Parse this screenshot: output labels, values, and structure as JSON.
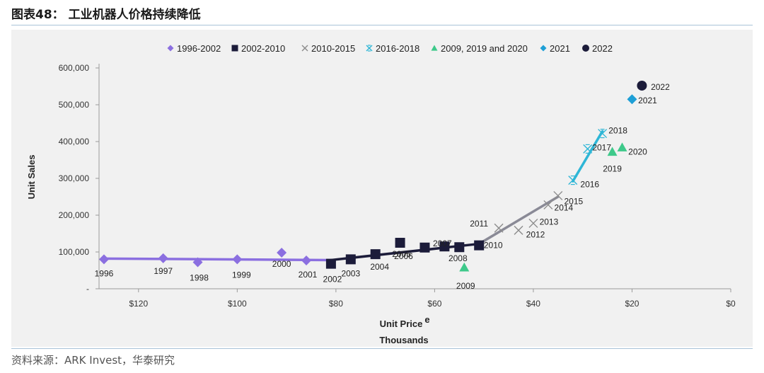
{
  "figure": {
    "title": "图表48： 工业机器人价格持续降低",
    "source": "资料来源：ARK Invest，华泰研究"
  },
  "chart_data": {
    "type": "scatter",
    "title": "",
    "xlabel": "Unit Price",
    "xlabel_sup": "e",
    "xlabel_sub": "Thousands",
    "ylabel": "Unit Sales",
    "xlim": [
      128,
      0
    ],
    "ylim": [
      0,
      600000
    ],
    "xticks": [
      120,
      100,
      80,
      60,
      40,
      20,
      0
    ],
    "xtick_labels": [
      "$120",
      "$100",
      "$80",
      "$60",
      "$40",
      "$20",
      "$0"
    ],
    "yticks": [
      0,
      100000,
      200000,
      300000,
      400000,
      500000,
      600000
    ],
    "ytick_labels": [
      "-",
      "100,000",
      "200,000",
      "300,000",
      "400,000",
      "500,000",
      "600,000"
    ],
    "legend_position": "top",
    "series": [
      {
        "name": "1996-2002",
        "marker": "diamond",
        "color": "#8b6fe0",
        "points": [
          {
            "x": 127,
            "y": 80000,
            "label": "1996"
          },
          {
            "x": 115,
            "y": 83000,
            "label": "1997"
          },
          {
            "x": 108,
            "y": 72000,
            "label": "1998"
          },
          {
            "x": 100,
            "y": 80000,
            "label": "1999"
          },
          {
            "x": 91,
            "y": 98000,
            "label": "2000"
          },
          {
            "x": 86,
            "y": 77000,
            "label": "2001"
          }
        ]
      },
      {
        "name": "2002-2010",
        "marker": "square",
        "color": "#1c1c3a",
        "points": [
          {
            "x": 81,
            "y": 68000,
            "label": "2002"
          },
          {
            "x": 77,
            "y": 80000,
            "label": "2003"
          },
          {
            "x": 72,
            "y": 94000,
            "label": "2004"
          },
          {
            "x": 67,
            "y": 125000,
            "label": "2005"
          },
          {
            "x": 62,
            "y": 112000,
            "label": "2006"
          },
          {
            "x": 58,
            "y": 115000,
            "label": "2007"
          },
          {
            "x": 55,
            "y": 113000,
            "label": "2008"
          },
          {
            "x": 51,
            "y": 118000,
            "label": "2010"
          }
        ]
      },
      {
        "name": "2010-2015",
        "marker": "x",
        "color": "#8c8c8c",
        "points": [
          {
            "x": 47,
            "y": 165000,
            "label": "2011"
          },
          {
            "x": 43,
            "y": 159000,
            "label": "2012"
          },
          {
            "x": 40,
            "y": 178000,
            "label": "2013"
          },
          {
            "x": 37,
            "y": 228000,
            "label": "2014"
          },
          {
            "x": 35,
            "y": 253000,
            "label": "2015"
          }
        ]
      },
      {
        "name": "2016-2018",
        "marker": "star-x",
        "color": "#2eb6d6",
        "points": [
          {
            "x": 32,
            "y": 295000,
            "label": "2016"
          },
          {
            "x": 29,
            "y": 380000,
            "label": "2017"
          },
          {
            "x": 26,
            "y": 422000,
            "label": "2018"
          }
        ]
      },
      {
        "name": "2009, 2019 and 2020",
        "marker": "triangle",
        "color": "#3ec98a",
        "points": [
          {
            "x": 54,
            "y": 58000,
            "label": "2009"
          },
          {
            "x": 24,
            "y": 372000,
            "label": "2019"
          },
          {
            "x": 22,
            "y": 384000,
            "label": "2020"
          }
        ]
      },
      {
        "name": "2021",
        "marker": "diamond",
        "color": "#1e9fd6",
        "points": [
          {
            "x": 20,
            "y": 515000,
            "label": "2021"
          }
        ]
      },
      {
        "name": "2022",
        "marker": "circle",
        "color": "#1c1c3a",
        "points": [
          {
            "x": 18,
            "y": 552000,
            "label": "2022"
          }
        ]
      }
    ],
    "trend_lines": [
      {
        "name": "1996-2002",
        "color": "#8b6fe0",
        "from": [
          127,
          82000
        ],
        "to": [
          81,
          78000
        ]
      },
      {
        "name": "2002-2010",
        "color": "#1c1c3a",
        "from": [
          81,
          78000
        ],
        "to": [
          51,
          122000
        ]
      },
      {
        "name": "2010-2015",
        "color": "#8a8a96",
        "from": [
          51,
          122000
        ],
        "to": [
          35,
          250000
        ]
      },
      {
        "name": "2016-2018",
        "color": "#2eb6d6",
        "from": [
          32,
          292000
        ],
        "to": [
          26,
          428000
        ]
      }
    ]
  }
}
